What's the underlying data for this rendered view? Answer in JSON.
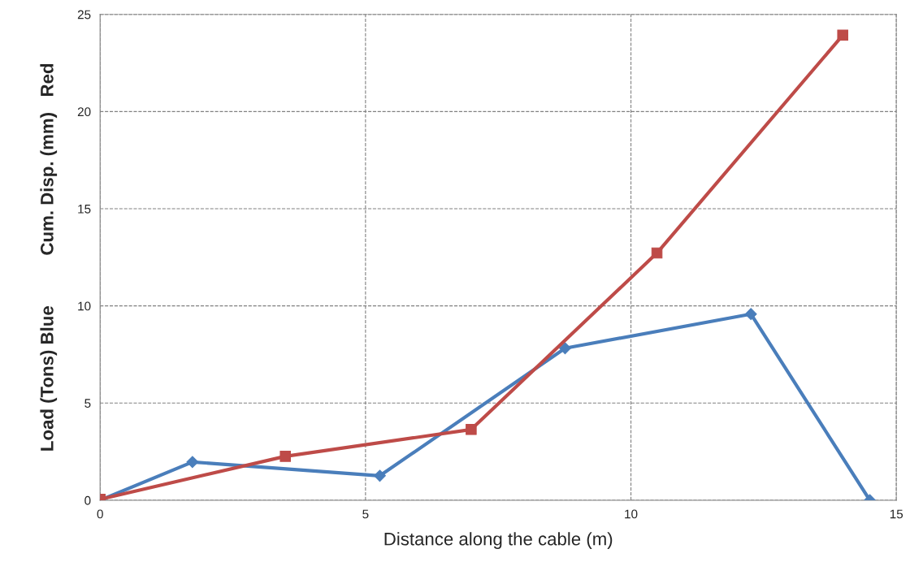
{
  "chart_data": {
    "type": "line",
    "xlabel": "Distance along the cable (m)",
    "ylabel": "Load (Tons) Blue          Cum. Disp. (mm)   Red",
    "xlim": [
      0,
      15
    ],
    "xticks": [
      0,
      5,
      10,
      15
    ],
    "ylim": [
      0,
      25
    ],
    "yticks": [
      0,
      5,
      10,
      15,
      20,
      25
    ],
    "grid": true,
    "line_style": "solid",
    "series": [
      {
        "color": "#4a7ebb",
        "marker": "diamond",
        "x": [
          0,
          1.74,
          5.27,
          8.76,
          12.26,
          14.5
        ],
        "values": [
          0,
          1.97,
          1.26,
          7.82,
          9.58,
          0
        ]
      },
      {
        "color": "#be4b48",
        "marker": "square",
        "x": [
          0,
          3.49,
          6.99,
          10.49,
          13.99
        ],
        "values": [
          0.05,
          2.26,
          3.64,
          12.72,
          23.93
        ]
      }
    ]
  }
}
